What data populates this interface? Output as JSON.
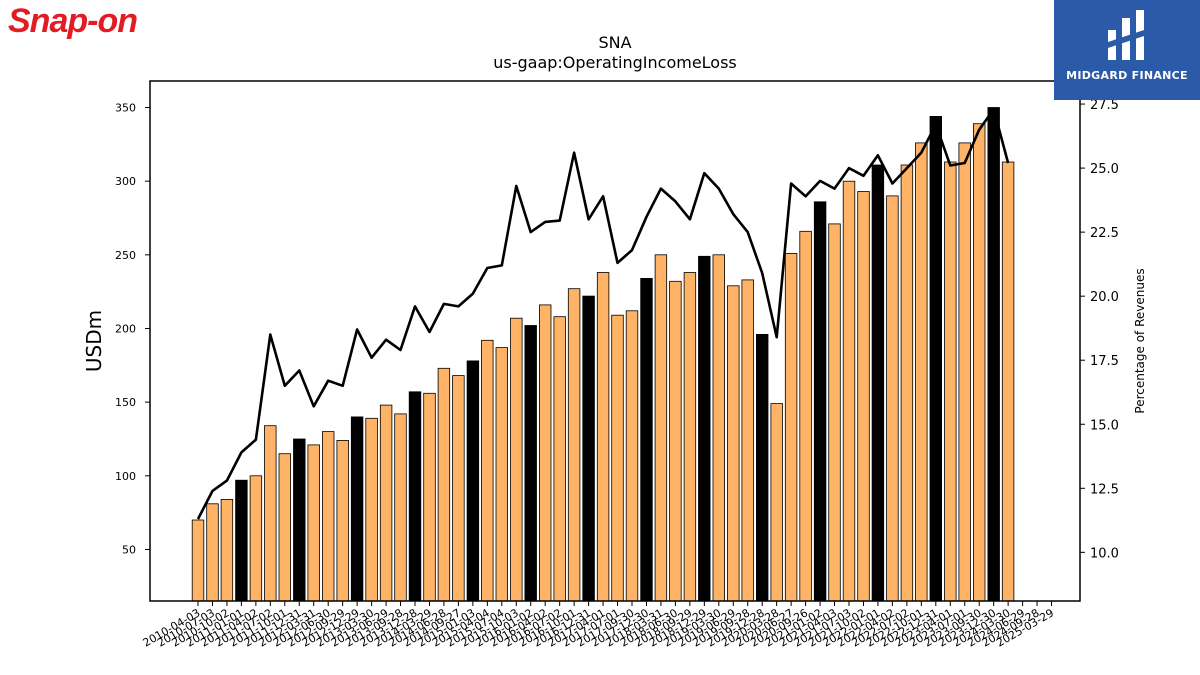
{
  "branding": {
    "left_logo_text": "Snap-on",
    "right_logo_text": "MIDGARD FINANCE",
    "left_logo_color": "#e31b23",
    "right_logo_bg": "#2b5aa8"
  },
  "chart_data": {
    "type": "bar",
    "title": "SNA",
    "subtitle": "us-gaap:OperatingIncomeLoss",
    "ylabel": "USDm",
    "y2label": "Percentage of Revenues",
    "ylim": [
      15,
      368
    ],
    "y2lim": [
      8.1,
      28.4
    ],
    "yticks": [
      50,
      100,
      150,
      200,
      250,
      300,
      350
    ],
    "y2ticks": [
      "10.0",
      "12.5",
      "15.0",
      "17.5",
      "20.0",
      "22.5",
      "25.0",
      "27.5"
    ],
    "colors": {
      "bar_quarter": "#ffb366",
      "bar_fiscal_year_end": "#000000",
      "line": "#000000"
    },
    "categories": [
      "2010-04-03",
      "2010-07-03",
      "2010-10-02",
      "2011-01-01",
      "2011-04-02",
      "2011-07-02",
      "2011-10-01",
      "2011-12-31",
      "2012-03-31",
      "2012-06-30",
      "2012-09-29",
      "2012-12-29",
      "2013-03-30",
      "2013-06-29",
      "2013-09-28",
      "2013-12-28",
      "2014-03-29",
      "2014-06-28",
      "2014-09-27",
      "2015-01-03",
      "2015-04-04",
      "2015-07-04",
      "2015-10-03",
      "2016-01-02",
      "2016-04-02",
      "2016-07-02",
      "2016-10-01",
      "2016-12-31",
      "2017-04-01",
      "2017-07-01",
      "2017-09-30",
      "2017-12-30",
      "2018-03-31",
      "2018-06-30",
      "2018-09-29",
      "2018-12-29",
      "2019-03-30",
      "2019-06-29",
      "2019-09-28",
      "2019-12-28",
      "2020-03-28",
      "2020-06-27",
      "2020-09-26",
      "2021-01-02",
      "2021-04-03",
      "2021-07-03",
      "2021-10-02",
      "2022-01-01",
      "2022-04-02",
      "2022-07-02",
      "2022-10-01",
      "2022-12-31",
      "2023-04-01",
      "2023-07-01",
      "2023-09-30",
      "2023-12-30",
      "2024-03-30",
      "2024-06-29",
      "2024-09-28",
      "2025-03-29"
    ],
    "fiscal_year_end": [
      false,
      false,
      false,
      true,
      false,
      false,
      false,
      true,
      false,
      false,
      false,
      true,
      false,
      false,
      false,
      true,
      false,
      false,
      false,
      true,
      false,
      false,
      false,
      true,
      false,
      false,
      false,
      true,
      false,
      false,
      false,
      true,
      false,
      false,
      false,
      true,
      false,
      false,
      false,
      true,
      false,
      false,
      false,
      true,
      false,
      false,
      false,
      true,
      false,
      false,
      false,
      true,
      false,
      false,
      false,
      true,
      false,
      false,
      false,
      false
    ],
    "series": [
      {
        "name": "Operating Income",
        "axis": "left",
        "values": [
          70,
          81,
          84,
          97,
          100,
          134,
          115,
          125,
          121,
          130,
          124,
          140,
          139,
          148,
          142,
          157,
          156,
          173,
          168,
          178,
          192,
          187,
          207,
          202,
          216,
          208,
          227,
          222,
          238,
          209,
          212,
          234,
          250,
          232,
          238,
          249,
          250,
          229,
          233,
          196,
          149,
          251,
          266,
          286,
          271,
          300,
          293,
          311,
          290,
          311,
          326,
          344,
          313,
          326,
          339,
          350,
          313,
          0,
          0,
          0
        ]
      },
      {
        "name": "Percentage of Revenues",
        "axis": "right",
        "values": [
          11.3,
          12.4,
          12.8,
          13.9,
          14.4,
          18.5,
          16.5,
          17.1,
          15.7,
          16.7,
          16.5,
          18.7,
          17.6,
          18.3,
          17.9,
          19.6,
          18.6,
          19.7,
          19.6,
          20.1,
          21.1,
          21.2,
          24.3,
          22.5,
          22.9,
          22.95,
          25.6,
          23.0,
          23.9,
          21.3,
          21.8,
          23.1,
          24.2,
          23.7,
          23.0,
          24.8,
          24.2,
          23.2,
          22.5,
          20.9,
          18.4,
          24.4,
          23.9,
          24.5,
          24.2,
          25.0,
          24.7,
          25.5,
          24.4,
          25.0,
          25.6,
          26.7,
          25.1,
          25.2,
          26.5,
          27.3,
          25.2,
          null,
          null,
          null
        ]
      }
    ]
  }
}
